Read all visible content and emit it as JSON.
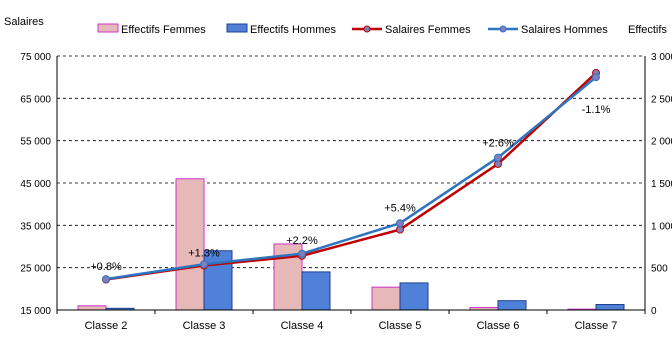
{
  "chart_data": {
    "type": "bar",
    "y_left_label": "Salaires",
    "y_right_label": "Effectifs",
    "categories": [
      "Classe 2",
      "Classe 3",
      "Classe 4",
      "Classe 5",
      "Classe 6",
      "Classe 7"
    ],
    "ylim_left": [
      15000,
      75000
    ],
    "yticks_left": [
      "15 000",
      "25 000",
      "35 000",
      "45 000",
      "55 000",
      "65 000",
      "75 000"
    ],
    "ylim_right": [
      0,
      3000
    ],
    "yticks_right": [
      "0",
      "500",
      "1 000",
      "1 500",
      "2 000",
      "2 500",
      "3 000"
    ],
    "bar_series": [
      {
        "name": "Effectifs Femmes",
        "values": [
          50,
          1550,
          780,
          270,
          30,
          10
        ],
        "color": "#e6b8b8",
        "stroke": "#cc33cc"
      },
      {
        "name": "Effectifs Hommes",
        "values": [
          20,
          700,
          450,
          320,
          110,
          65
        ],
        "color": "#4f81d9",
        "stroke": "#1f3f8f"
      }
    ],
    "line_series": [
      {
        "name": "Salaires Femmes",
        "values": [
          22200,
          25500,
          27800,
          34000,
          49500,
          71000
        ],
        "color": "#c00000"
      },
      {
        "name": "Salaires Hommes",
        "values": [
          22300,
          25800,
          28300,
          35500,
          51000,
          70000
        ],
        "color": "#2e75c0"
      }
    ],
    "annotations": [
      {
        "text": "+0.8%",
        "category": 0,
        "y": 24400
      },
      {
        "text": "+1.3%",
        "category": 1,
        "y": 27600
      },
      {
        "text": "+2.2%",
        "category": 2,
        "y": 30600
      },
      {
        "text": "+5.4%",
        "category": 3,
        "y": 38300
      },
      {
        "text": "+2.6%",
        "category": 4,
        "y": 53600
      },
      {
        "text": "-1.1%",
        "category": 5,
        "y": 61500
      }
    ],
    "grid": "horizontal dashed"
  }
}
